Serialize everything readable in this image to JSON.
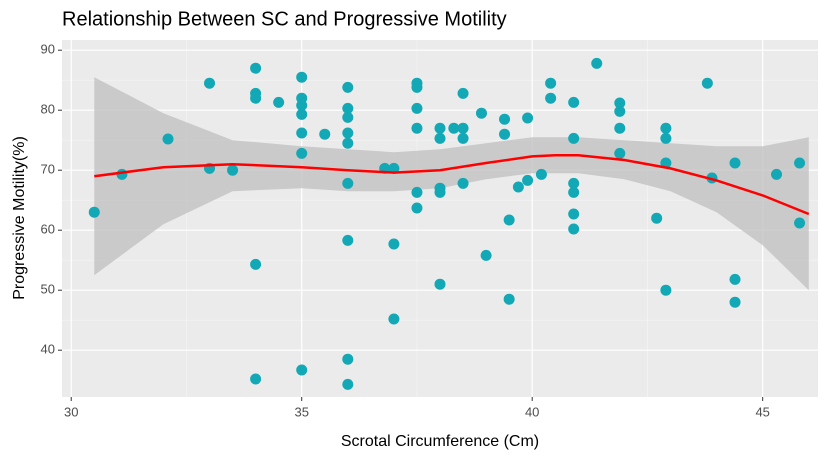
{
  "chart_data": {
    "type": "scatter",
    "title": "Relationship Between SC and Progressive Motility",
    "x_label": "Scrotal Circumference (Cm)",
    "y_label": "Progressive Motility(%)",
    "xlim": [
      29.8,
      46.2
    ],
    "ylim": [
      32.2,
      91.7
    ],
    "xticks": [
      30,
      35,
      40,
      45
    ],
    "yticks": [
      40,
      50,
      60,
      70,
      80,
      90
    ],
    "grid": true,
    "series": [
      {
        "color": "#12a8b5",
        "x": [
          30.5,
          31.1,
          32.1,
          33,
          33,
          33.5,
          34,
          34,
          34,
          34,
          34,
          34.5,
          35,
          35,
          35,
          35,
          35,
          35,
          35,
          35.5,
          36,
          36,
          36,
          36,
          36,
          36,
          36,
          36,
          36,
          36.8,
          37,
          37,
          37,
          37.5,
          37.5,
          37.5,
          37.5,
          37.5,
          37.5,
          38,
          38,
          38,
          38,
          38,
          38.3,
          38.5,
          38.5,
          38.5,
          38.5,
          38.9,
          39,
          39.4,
          39.4,
          39.5,
          39.5,
          39.7,
          39.9,
          39.9,
          40.2,
          40.4,
          40.4,
          40.9,
          40.9,
          40.9,
          40.9,
          40.9,
          40.9,
          41.4,
          41.9,
          41.9,
          41.9,
          41.9,
          42.7,
          42.9,
          42.9,
          42.9,
          42.9,
          43.8,
          43.9,
          44.4,
          44.4,
          44.4,
          45.3,
          45.8,
          45.8
        ],
        "values": [
          63,
          69.3,
          75.2,
          84.5,
          70.3,
          70,
          87,
          82.8,
          82,
          54.3,
          35.2,
          81.3,
          85.5,
          82,
          80.8,
          79.3,
          76.2,
          72.8,
          36.7,
          76,
          83.8,
          80.3,
          78.8,
          76.2,
          74.5,
          67.8,
          58.3,
          38.5,
          34.3,
          70.3,
          70.3,
          57.7,
          45.2,
          84.5,
          83.8,
          80.3,
          77,
          66.3,
          63.7,
          77,
          75.3,
          67,
          66.3,
          51,
          77,
          77,
          82.8,
          75.3,
          67.8,
          79.5,
          55.8,
          78.5,
          76,
          61.7,
          48.5,
          67.2,
          78.7,
          68.3,
          69.3,
          84.5,
          82,
          81.3,
          75.3,
          67.8,
          66.3,
          62.7,
          60.2,
          87.8,
          81.2,
          79.8,
          77,
          72.8,
          62,
          77,
          75.3,
          71.2,
          50,
          84.5,
          68.7,
          71.2,
          51.8,
          48,
          69.3,
          71.2,
          61.2
        ]
      }
    ],
    "smooth": {
      "color": "#ff0000",
      "band_color": "#bfbfbf",
      "x": [
        30.5,
        32,
        33.5,
        35,
        36,
        37,
        38,
        39,
        40,
        40.5,
        41,
        42,
        43,
        44,
        45,
        46
      ],
      "values": [
        69,
        70.5,
        71,
        70.5,
        70,
        69.6,
        70,
        71.2,
        72.3,
        72.5,
        72.5,
        71.7,
        70.3,
        68.3,
        65.8,
        62.7
      ],
      "upper": [
        85.5,
        79.5,
        75,
        74,
        73.5,
        73,
        73.5,
        74.5,
        75.5,
        75.5,
        75.5,
        75,
        74.5,
        74,
        74,
        75.5
      ],
      "lower": [
        52.5,
        61,
        66.5,
        67,
        66.5,
        66.5,
        67,
        68.5,
        69.5,
        69.5,
        69.5,
        68.5,
        66.5,
        63,
        57.5,
        50
      ]
    }
  }
}
